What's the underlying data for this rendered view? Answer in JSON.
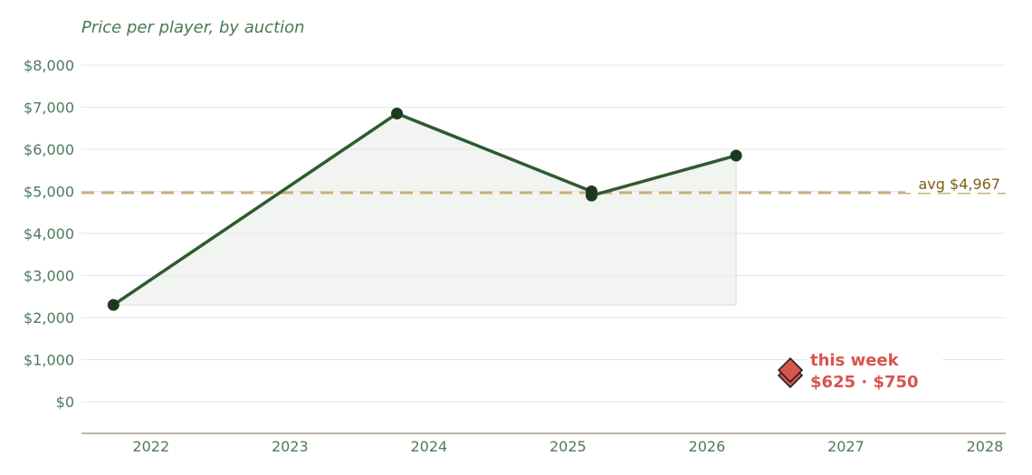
{
  "chart_data": {
    "type": "line",
    "title": "Price per player, by auction",
    "xlabel": "",
    "ylabel": "",
    "x_ticks": [
      "2022",
      "2023",
      "2024",
      "2025",
      "2026",
      "2027",
      "2028"
    ],
    "y_ticks": [
      "$0",
      "$1,000",
      "$2,000",
      "$3,000",
      "$4,000",
      "$5,000",
      "$6,000",
      "$7,000",
      "$8,000"
    ],
    "xlim": [
      2021.5,
      2028.15
    ],
    "ylim": [
      -750,
      8000
    ],
    "grid": true,
    "series": [
      {
        "color": "#2f5a2f",
        "area_fill": true,
        "points": [
          {
            "x": 2021.73,
            "y": 2300
          },
          {
            "x": 2023.77,
            "y": 6850
          },
          {
            "x": 2025.17,
            "y": 5000
          },
          {
            "x": 2025.17,
            "y": 4900
          },
          {
            "x": 2026.21,
            "y": 5850
          }
        ]
      }
    ],
    "average": {
      "value": 4967,
      "label": "avg $4,967",
      "color": "#c8b078"
    },
    "this_week": {
      "x": 2026.6,
      "values": [
        625,
        750
      ],
      "label_line1": "this week",
      "label_line2": "$625 · $750",
      "color": "#d9534f"
    }
  }
}
